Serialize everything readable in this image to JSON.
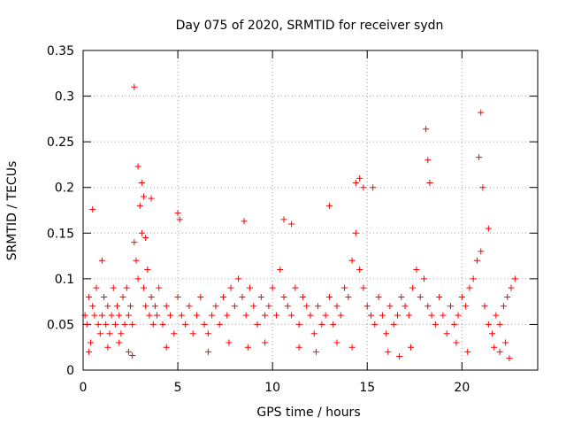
{
  "chart_data": {
    "type": "scatter",
    "title": "Day 075 of 2020, SRMTID for receiver sydn",
    "xlabel": "GPS time / hours",
    "ylabel": "SRMTID / TECUs",
    "xlim": [
      0,
      24
    ],
    "ylim": [
      0,
      0.35
    ],
    "x_ticks": [
      0,
      5,
      10,
      15,
      20
    ],
    "y_ticks": [
      0,
      0.05,
      0.1,
      0.15,
      0.2,
      0.25,
      0.3,
      0.35
    ],
    "x_tick_labels": [
      "0",
      "5",
      "10",
      "15",
      "20"
    ],
    "y_tick_labels": [
      "0",
      "0.05",
      "0.1",
      "0.15",
      "0.2",
      "0.25",
      "0.3",
      "0.35"
    ],
    "grid": true,
    "marker": "+",
    "series": [
      {
        "name": "SRMTID",
        "color": "#ff0000",
        "x": [
          0.1,
          0.2,
          0.3,
          0.4,
          0.5,
          0.6,
          0.7,
          0.8,
          0.9,
          1.0,
          1.1,
          1.2,
          1.3,
          1.4,
          1.5,
          1.6,
          1.7,
          1.8,
          1.9,
          2.0,
          2.1,
          2.2,
          2.3,
          2.4,
          2.5,
          2.6,
          2.7,
          2.8,
          2.9,
          3.0,
          3.1,
          3.2,
          3.3,
          3.4,
          3.5,
          3.6,
          3.7,
          3.8,
          3.9,
          4.0,
          4.2,
          4.4,
          4.6,
          4.8,
          5.0,
          5.2,
          5.4,
          5.6,
          5.8,
          6.0,
          6.2,
          6.4,
          6.6,
          6.8,
          7.0,
          7.2,
          7.4,
          7.6,
          7.8,
          8.0,
          8.2,
          8.4,
          8.6,
          8.8,
          9.0,
          9.2,
          9.4,
          9.6,
          9.8,
          10.0,
          10.2,
          10.4,
          10.6,
          10.8,
          11.0,
          11.2,
          11.4,
          11.6,
          11.8,
          12.0,
          12.2,
          12.4,
          12.6,
          12.8,
          13.0,
          13.2,
          13.4,
          13.6,
          13.8,
          14.0,
          14.2,
          14.4,
          14.6,
          14.8,
          15.0,
          15.2,
          15.4,
          15.6,
          15.8,
          16.0,
          16.2,
          16.4,
          16.6,
          16.8,
          17.0,
          17.2,
          17.4,
          17.6,
          17.8,
          18.0,
          18.2,
          18.4,
          18.6,
          18.8,
          19.0,
          19.2,
          19.4,
          19.6,
          19.8,
          20.0,
          20.2,
          20.4,
          20.6,
          20.8,
          21.0,
          21.2,
          21.4,
          21.6,
          21.8,
          22.0,
          22.2,
          22.4,
          22.6,
          22.8,
          0.5,
          1.0,
          2.7,
          2.9,
          3.1,
          3.2,
          3.6,
          5.0,
          5.1,
          8.5,
          10.6,
          11.0,
          14.4,
          14.6,
          14.8,
          15.3,
          18.1,
          18.2,
          18.3,
          20.9,
          21.0,
          21.1,
          2.6,
          3.3,
          13.0,
          21.4,
          22.0,
          22.5,
          0.3,
          1.3,
          1.9,
          2.4,
          4.4,
          6.6,
          7.7,
          8.7,
          9.6,
          11.4,
          12.3,
          13.4,
          14.2,
          16.1,
          16.7,
          17.3,
          19.7,
          20.3,
          21.7,
          22.3
        ],
        "y": [
          0.06,
          0.05,
          0.08,
          0.03,
          0.07,
          0.06,
          0.09,
          0.05,
          0.04,
          0.06,
          0.08,
          0.05,
          0.07,
          0.04,
          0.06,
          0.09,
          0.05,
          0.07,
          0.06,
          0.04,
          0.08,
          0.05,
          0.09,
          0.06,
          0.07,
          0.05,
          0.14,
          0.12,
          0.1,
          0.18,
          0.15,
          0.09,
          0.07,
          0.11,
          0.06,
          0.08,
          0.05,
          0.07,
          0.06,
          0.09,
          0.05,
          0.07,
          0.06,
          0.04,
          0.08,
          0.06,
          0.05,
          0.07,
          0.04,
          0.06,
          0.08,
          0.05,
          0.04,
          0.06,
          0.07,
          0.05,
          0.08,
          0.06,
          0.09,
          0.07,
          0.1,
          0.08,
          0.06,
          0.09,
          0.07,
          0.05,
          0.08,
          0.06,
          0.07,
          0.09,
          0.06,
          0.11,
          0.08,
          0.07,
          0.06,
          0.09,
          0.05,
          0.08,
          0.07,
          0.06,
          0.04,
          0.07,
          0.05,
          0.06,
          0.08,
          0.05,
          0.07,
          0.06,
          0.09,
          0.08,
          0.12,
          0.15,
          0.11,
          0.09,
          0.07,
          0.06,
          0.05,
          0.08,
          0.06,
          0.04,
          0.07,
          0.05,
          0.06,
          0.08,
          0.07,
          0.06,
          0.09,
          0.11,
          0.08,
          0.1,
          0.07,
          0.06,
          0.05,
          0.08,
          0.06,
          0.04,
          0.07,
          0.05,
          0.06,
          0.08,
          0.07,
          0.09,
          0.1,
          0.12,
          0.13,
          0.07,
          0.05,
          0.04,
          0.06,
          0.05,
          0.07,
          0.08,
          0.09,
          0.1,
          0.176,
          0.12,
          0.31,
          0.223,
          0.205,
          0.19,
          0.188,
          0.172,
          0.165,
          0.163,
          0.165,
          0.16,
          0.205,
          0.21,
          0.2,
          0.2,
          0.264,
          0.23,
          0.205,
          0.233,
          0.282,
          0.2,
          0.016,
          0.145,
          0.18,
          0.155,
          0.02,
          0.013,
          0.02,
          0.025,
          0.03,
          0.02,
          0.025,
          0.02,
          0.03,
          0.025,
          0.03,
          0.025,
          0.02,
          0.03,
          0.025,
          0.02,
          0.015,
          0.025,
          0.03,
          0.02,
          0.025,
          0.03
        ]
      }
    ]
  }
}
